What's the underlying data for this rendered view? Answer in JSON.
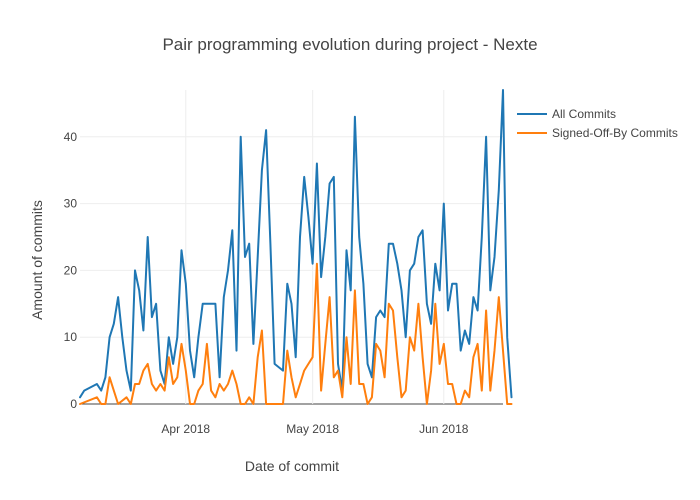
{
  "chart_data": {
    "type": "line",
    "title": "Pair programming evolution during project - Nexte",
    "xlabel": "Date of commit",
    "ylabel": "Amount of commits",
    "x_ticks": [
      {
        "date": "2018-04-01",
        "label": "Apr 2018"
      },
      {
        "date": "2018-05-01",
        "label": "May 2018"
      },
      {
        "date": "2018-06-01",
        "label": "Jun 2018"
      }
    ],
    "y_ticks": [
      0,
      10,
      20,
      30,
      40
    ],
    "xlim": [
      "2018-03-07",
      "2018-06-15"
    ],
    "ylim": [
      0,
      47
    ],
    "grid": true,
    "legend_position": "top-right",
    "colors": {
      "all_commits": "#1f77b4",
      "signed_off": "#ff7f0e"
    },
    "series": [
      {
        "name": "All Commits",
        "color": "#1f77b4",
        "points": [
          [
            "2018-03-07",
            1
          ],
          [
            "2018-03-08",
            2
          ],
          [
            "2018-03-11",
            3
          ],
          [
            "2018-03-12",
            2
          ],
          [
            "2018-03-13",
            4
          ],
          [
            "2018-03-14",
            10
          ],
          [
            "2018-03-15",
            12
          ],
          [
            "2018-03-16",
            16
          ],
          [
            "2018-03-17",
            10
          ],
          [
            "2018-03-18",
            5
          ],
          [
            "2018-03-19",
            2
          ],
          [
            "2018-03-20",
            20
          ],
          [
            "2018-03-21",
            17
          ],
          [
            "2018-03-22",
            11
          ],
          [
            "2018-03-23",
            25
          ],
          [
            "2018-03-24",
            13
          ],
          [
            "2018-03-25",
            15
          ],
          [
            "2018-03-26",
            5
          ],
          [
            "2018-03-27",
            3
          ],
          [
            "2018-03-28",
            10
          ],
          [
            "2018-03-29",
            6
          ],
          [
            "2018-03-30",
            10
          ],
          [
            "2018-03-31",
            23
          ],
          [
            "2018-04-01",
            18
          ],
          [
            "2018-04-02",
            8
          ],
          [
            "2018-04-03",
            4
          ],
          [
            "2018-04-04",
            10
          ],
          [
            "2018-04-05",
            15
          ],
          [
            "2018-04-06",
            15
          ],
          [
            "2018-04-07",
            15
          ],
          [
            "2018-04-08",
            15
          ],
          [
            "2018-04-09",
            4
          ],
          [
            "2018-04-10",
            16
          ],
          [
            "2018-04-11",
            20
          ],
          [
            "2018-04-12",
            26
          ],
          [
            "2018-04-13",
            8
          ],
          [
            "2018-04-14",
            40
          ],
          [
            "2018-04-15",
            22
          ],
          [
            "2018-04-16",
            24
          ],
          [
            "2018-04-17",
            9
          ],
          [
            "2018-04-18",
            22
          ],
          [
            "2018-04-19",
            35
          ],
          [
            "2018-04-20",
            41
          ],
          [
            "2018-04-21",
            24
          ],
          [
            "2018-04-22",
            6
          ],
          [
            "2018-04-24",
            5
          ],
          [
            "2018-04-25",
            18
          ],
          [
            "2018-04-26",
            15
          ],
          [
            "2018-04-27",
            7
          ],
          [
            "2018-04-28",
            25
          ],
          [
            "2018-04-29",
            34
          ],
          [
            "2018-04-30",
            28
          ],
          [
            "2018-05-01",
            21
          ],
          [
            "2018-05-02",
            36
          ],
          [
            "2018-05-03",
            19
          ],
          [
            "2018-05-04",
            25
          ],
          [
            "2018-05-05",
            33
          ],
          [
            "2018-05-06",
            34
          ],
          [
            "2018-05-07",
            6
          ],
          [
            "2018-05-08",
            2
          ],
          [
            "2018-05-09",
            23
          ],
          [
            "2018-05-10",
            17
          ],
          [
            "2018-05-11",
            43
          ],
          [
            "2018-05-12",
            25
          ],
          [
            "2018-05-13",
            18
          ],
          [
            "2018-05-14",
            6
          ],
          [
            "2018-05-15",
            4
          ],
          [
            "2018-05-16",
            13
          ],
          [
            "2018-05-17",
            14
          ],
          [
            "2018-05-18",
            13
          ],
          [
            "2018-05-19",
            24
          ],
          [
            "2018-05-20",
            24
          ],
          [
            "2018-05-21",
            21
          ],
          [
            "2018-05-22",
            17
          ],
          [
            "2018-05-23",
            10
          ],
          [
            "2018-05-24",
            20
          ],
          [
            "2018-05-25",
            21
          ],
          [
            "2018-05-26",
            25
          ],
          [
            "2018-05-27",
            26
          ],
          [
            "2018-05-28",
            15
          ],
          [
            "2018-05-29",
            12
          ],
          [
            "2018-05-30",
            21
          ],
          [
            "2018-05-31",
            17
          ],
          [
            "2018-06-01",
            30
          ],
          [
            "2018-06-02",
            14
          ],
          [
            "2018-06-03",
            18
          ],
          [
            "2018-06-04",
            18
          ],
          [
            "2018-06-05",
            8
          ],
          [
            "2018-06-06",
            11
          ],
          [
            "2018-06-07",
            9
          ],
          [
            "2018-06-08",
            16
          ],
          [
            "2018-06-09",
            14
          ],
          [
            "2018-06-10",
            25
          ],
          [
            "2018-06-11",
            40
          ],
          [
            "2018-06-12",
            17
          ],
          [
            "2018-06-13",
            22
          ],
          [
            "2018-06-14",
            32
          ],
          [
            "2018-06-15",
            47
          ],
          [
            "2018-06-16",
            10
          ],
          [
            "2018-06-17",
            1
          ]
        ]
      },
      {
        "name": "Signed-Off-By Commits",
        "color": "#ff7f0e",
        "points": [
          [
            "2018-03-07",
            0
          ],
          [
            "2018-03-11",
            1
          ],
          [
            "2018-03-12",
            0
          ],
          [
            "2018-03-13",
            0
          ],
          [
            "2018-03-14",
            4
          ],
          [
            "2018-03-15",
            2
          ],
          [
            "2018-03-16",
            0
          ],
          [
            "2018-03-18",
            1
          ],
          [
            "2018-03-19",
            0
          ],
          [
            "2018-03-20",
            3
          ],
          [
            "2018-03-21",
            3
          ],
          [
            "2018-03-22",
            5
          ],
          [
            "2018-03-23",
            6
          ],
          [
            "2018-03-24",
            3
          ],
          [
            "2018-03-25",
            2
          ],
          [
            "2018-03-26",
            3
          ],
          [
            "2018-03-27",
            2
          ],
          [
            "2018-03-28",
            7
          ],
          [
            "2018-03-29",
            3
          ],
          [
            "2018-03-30",
            4
          ],
          [
            "2018-03-31",
            9
          ],
          [
            "2018-04-01",
            5
          ],
          [
            "2018-04-02",
            0
          ],
          [
            "2018-04-03",
            0
          ],
          [
            "2018-04-04",
            2
          ],
          [
            "2018-04-05",
            3
          ],
          [
            "2018-04-06",
            9
          ],
          [
            "2018-04-07",
            2
          ],
          [
            "2018-04-08",
            1
          ],
          [
            "2018-04-09",
            3
          ],
          [
            "2018-04-10",
            2
          ],
          [
            "2018-04-11",
            3
          ],
          [
            "2018-04-12",
            5
          ],
          [
            "2018-04-13",
            3
          ],
          [
            "2018-04-14",
            0
          ],
          [
            "2018-04-15",
            0
          ],
          [
            "2018-04-16",
            1
          ],
          [
            "2018-04-17",
            0
          ],
          [
            "2018-04-18",
            7
          ],
          [
            "2018-04-19",
            11
          ],
          [
            "2018-04-20",
            0
          ],
          [
            "2018-04-24",
            0
          ],
          [
            "2018-04-25",
            8
          ],
          [
            "2018-04-26",
            4
          ],
          [
            "2018-04-27",
            1
          ],
          [
            "2018-04-28",
            3
          ],
          [
            "2018-04-29",
            5
          ],
          [
            "2018-04-30",
            6
          ],
          [
            "2018-05-01",
            7
          ],
          [
            "2018-05-02",
            21
          ],
          [
            "2018-05-03",
            2
          ],
          [
            "2018-05-04",
            9
          ],
          [
            "2018-05-05",
            16
          ],
          [
            "2018-05-06",
            4
          ],
          [
            "2018-05-07",
            5
          ],
          [
            "2018-05-08",
            1
          ],
          [
            "2018-05-09",
            10
          ],
          [
            "2018-05-10",
            3
          ],
          [
            "2018-05-11",
            17
          ],
          [
            "2018-05-12",
            3
          ],
          [
            "2018-05-13",
            3
          ],
          [
            "2018-05-14",
            0
          ],
          [
            "2018-05-15",
            1
          ],
          [
            "2018-05-16",
            9
          ],
          [
            "2018-05-17",
            8
          ],
          [
            "2018-05-18",
            4
          ],
          [
            "2018-05-19",
            15
          ],
          [
            "2018-05-20",
            14
          ],
          [
            "2018-05-21",
            7
          ],
          [
            "2018-05-22",
            1
          ],
          [
            "2018-05-23",
            2
          ],
          [
            "2018-05-24",
            10
          ],
          [
            "2018-05-25",
            8
          ],
          [
            "2018-05-26",
            15
          ],
          [
            "2018-05-27",
            7
          ],
          [
            "2018-05-28",
            0
          ],
          [
            "2018-05-29",
            5
          ],
          [
            "2018-05-30",
            15
          ],
          [
            "2018-05-31",
            6
          ],
          [
            "2018-06-01",
            9
          ],
          [
            "2018-06-02",
            3
          ],
          [
            "2018-06-03",
            3
          ],
          [
            "2018-06-04",
            0
          ],
          [
            "2018-06-05",
            0
          ],
          [
            "2018-06-06",
            2
          ],
          [
            "2018-06-07",
            1
          ],
          [
            "2018-06-08",
            7
          ],
          [
            "2018-06-09",
            9
          ],
          [
            "2018-06-10",
            2
          ],
          [
            "2018-06-11",
            14
          ],
          [
            "2018-06-12",
            2
          ],
          [
            "2018-06-13",
            8
          ],
          [
            "2018-06-14",
            16
          ],
          [
            "2018-06-15",
            8
          ],
          [
            "2018-06-16",
            0
          ],
          [
            "2018-06-17",
            0
          ]
        ]
      }
    ]
  }
}
